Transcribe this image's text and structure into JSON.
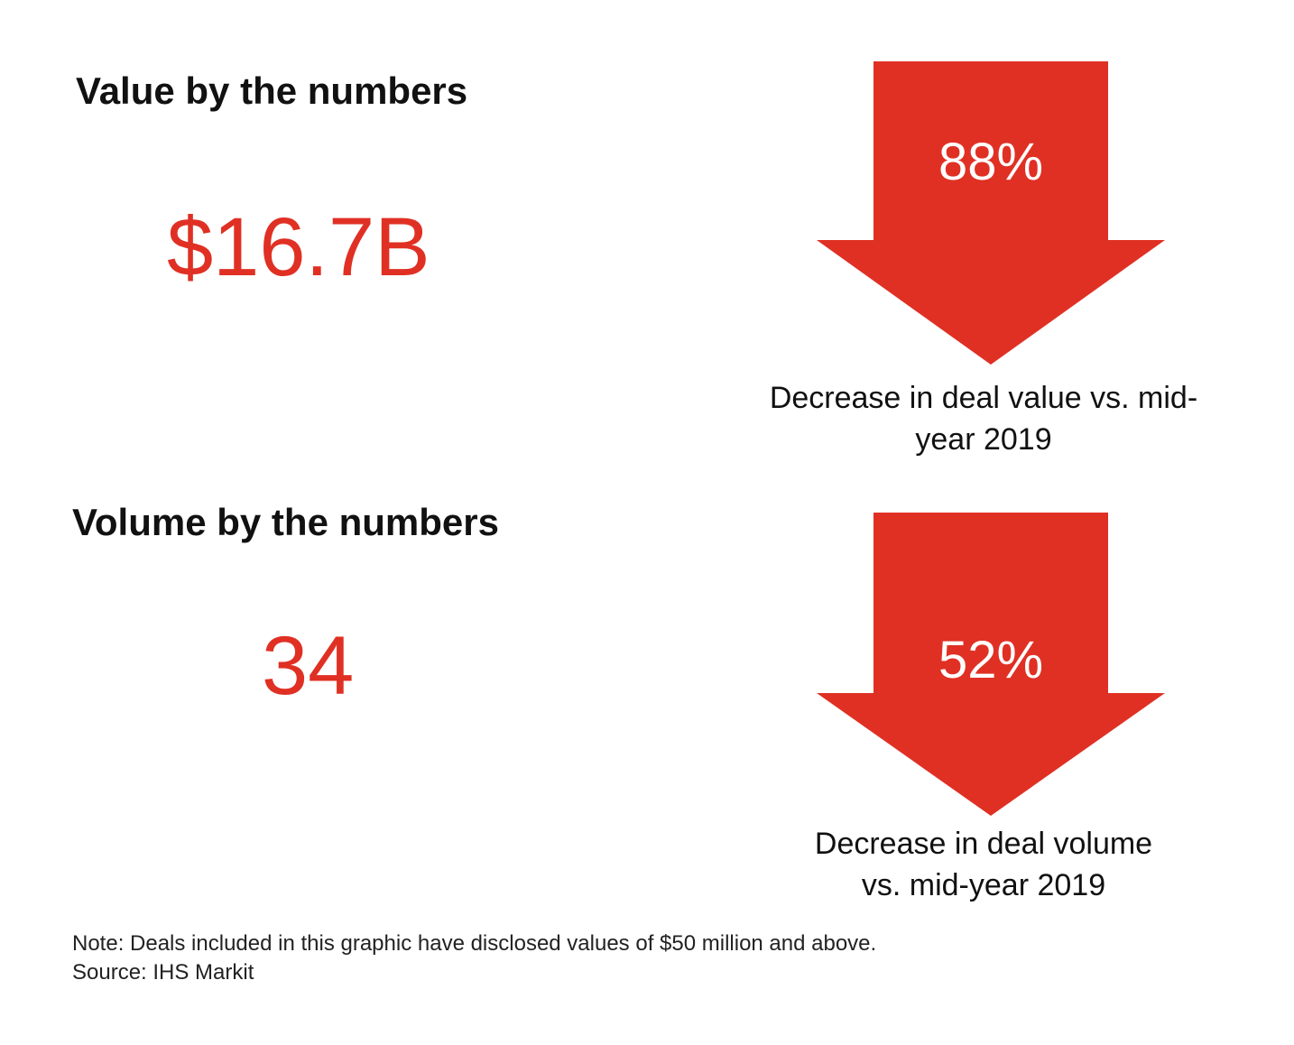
{
  "colors": {
    "accent": "#e03024",
    "text": "#111111",
    "arrow_text": "#ffffff"
  },
  "value": {
    "heading": "Value by the numbers",
    "stat": "$16.7B",
    "change_pct": "88%",
    "change_caption_line1": "Decrease in deal value vs. mid-",
    "change_caption_line2": "year 2019"
  },
  "volume": {
    "heading": "Volume by the numbers",
    "stat": "34",
    "change_pct": "52%",
    "change_caption_line1": "Decrease in deal volume",
    "change_caption_line2": "vs. mid-year 2019"
  },
  "footnotes": {
    "note": "Note: Deals included in this graphic have  disclosed values  of $50  million  and above.",
    "source": "Source:  IHS  Markit"
  }
}
